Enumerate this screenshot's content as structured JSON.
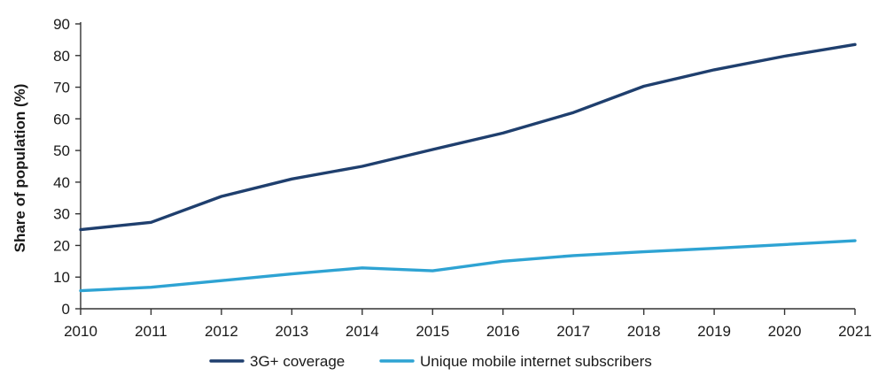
{
  "chart_data": {
    "type": "line",
    "title": "",
    "xlabel": "",
    "ylabel": "Share of population (%)",
    "x": [
      "2010",
      "2011",
      "2012",
      "2013",
      "2014",
      "2015",
      "2016",
      "2017",
      "2018",
      "2019",
      "2020",
      "2021"
    ],
    "ylim": [
      0,
      90
    ],
    "yticks": [
      0,
      10,
      20,
      30,
      40,
      50,
      60,
      70,
      80,
      90
    ],
    "grid": false,
    "legend_position": "bottom",
    "series": [
      {
        "name": "3G+ coverage",
        "color": "#1f3f6e",
        "values": [
          25,
          27.3,
          35.5,
          41,
          45,
          50.3,
          55.5,
          62,
          70.3,
          75.5,
          79.8,
          83.5
        ]
      },
      {
        "name": "Unique mobile internet subscribers",
        "color": "#2ea3d3",
        "values": [
          5.7,
          6.8,
          8.9,
          11,
          12.9,
          12,
          15,
          16.8,
          18,
          19.1,
          20.3,
          21.5
        ]
      }
    ]
  }
}
